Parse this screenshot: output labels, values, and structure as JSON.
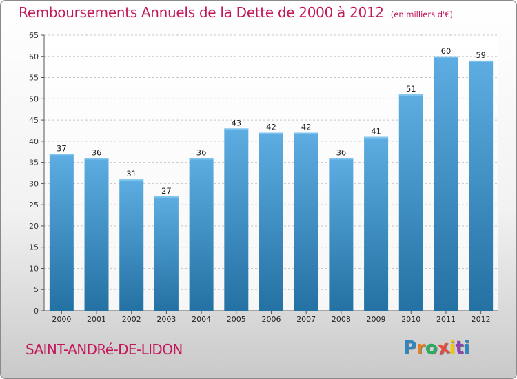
{
  "chart_data": {
    "type": "bar",
    "title": "Remboursements Annuels de la Dette de 2000 à 2012",
    "unit_label": "(en milliers d'€)",
    "categories": [
      "2000",
      "2001",
      "2002",
      "2003",
      "2004",
      "2005",
      "2006",
      "2007",
      "2008",
      "2009",
      "2010",
      "2011",
      "2012"
    ],
    "values": [
      37,
      36,
      31,
      27,
      36,
      43,
      42,
      42,
      36,
      41,
      51,
      60,
      59
    ],
    "data_labels": [
      "37",
      "36",
      "31",
      "27",
      "36",
      "43",
      "42",
      "42",
      "36",
      "41",
      "51",
      "60",
      "59"
    ],
    "yticks": [
      "0",
      "5",
      "10",
      "15",
      "20",
      "25",
      "30",
      "35",
      "40",
      "45",
      "50",
      "55",
      "60",
      "65"
    ],
    "ylim": [
      0,
      65
    ],
    "xlabel": "",
    "ylabel": "",
    "grid": "horizontal dashed",
    "bar_color_top": "#5dade2",
    "bar_color_bottom": "#2471a3"
  },
  "footer": {
    "commune": "SAINT-ANDRé-DE-LIDON",
    "logo_letters": [
      "P",
      "r",
      "o",
      "x",
      "i",
      "t",
      "i"
    ],
    "logo_colors": [
      "#2e86c1",
      "#e67e22",
      "#27ae60",
      "#e74c3c",
      "#f1c40f",
      "#8e44ad",
      "#2e86c1"
    ]
  }
}
